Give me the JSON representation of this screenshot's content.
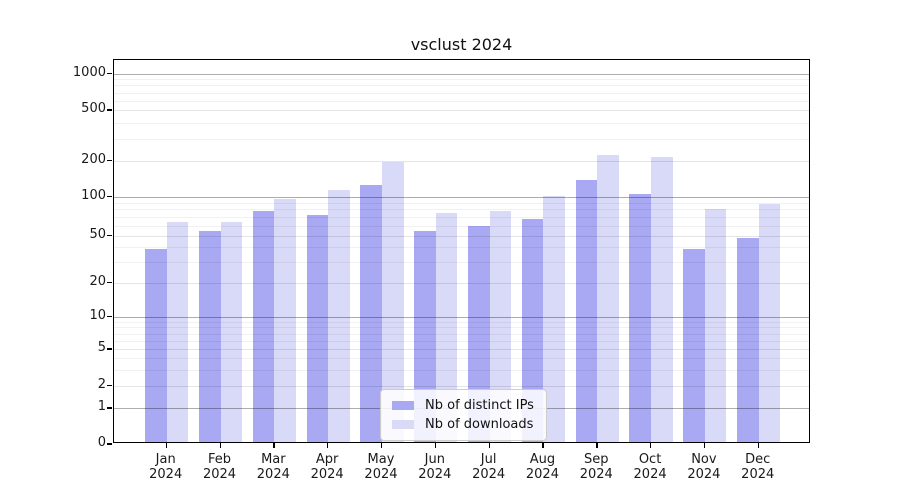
{
  "chart_data": {
    "type": "bar",
    "title": "vsclust 2024",
    "categories": [
      "Jan 2024",
      "Feb 2024",
      "Mar 2024",
      "Apr 2024",
      "May 2024",
      "Jun 2024",
      "Jul 2024",
      "Aug 2024",
      "Sep 2024",
      "Oct 2024",
      "Nov 2024",
      "Dec 2024"
    ],
    "months": [
      "Jan",
      "Feb",
      "Mar",
      "Apr",
      "May",
      "Jun",
      "Jul",
      "Aug",
      "Sep",
      "Oct",
      "Nov",
      "Dec"
    ],
    "year_label": "2024",
    "series": [
      {
        "name": "Nb of distinct IPs",
        "color": "#a8a8f3",
        "values": [
          37,
          52,
          74,
          70,
          121,
          52,
          57,
          65,
          133,
          100,
          37,
          46
        ]
      },
      {
        "name": "Nb of downloads",
        "color": "#d9d9f8",
        "values": [
          62,
          62,
          92,
          108,
          188,
          72,
          75,
          97,
          215,
          206,
          78,
          85
        ]
      }
    ],
    "y_ticks": [
      0,
      1,
      2,
      5,
      10,
      20,
      50,
      100,
      200,
      500,
      1000
    ],
    "y_major_ticks": [
      1,
      10,
      100,
      1000
    ],
    "y_scale": "symlog",
    "ylim": [
      0,
      1400
    ],
    "grid": true,
    "legend_position": "bottom-center",
    "colors": {
      "distinct_ips_bar": "#a8a8f3",
      "downloads_bar": "#d9d9f8",
      "major_gridline": "#ababab",
      "minor_gridline": "#e8e8e8",
      "axis_frame": "#000000",
      "text": "#1a1a1a"
    }
  }
}
